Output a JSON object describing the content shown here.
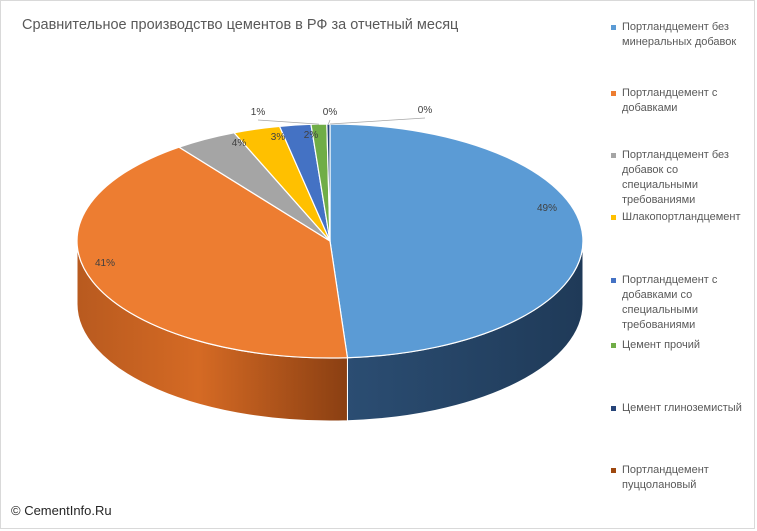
{
  "chart_data": {
    "type": "pie",
    "title": "Сравнительное производство цементов в РФ за отчетный месяц",
    "categories": [
      "Портландцемент без минеральных добавок",
      "Портландцемент с добавками",
      "Портландцемент без добавок со специальными требованиями",
      "Шлакопортландцемент",
      "Портландцемент с добавками со специальными требованиями",
      "Цемент прочий",
      "Цемент глиноземистый",
      "Портландцемент пуццолановый"
    ],
    "values": [
      49,
      41,
      4,
      3,
      2,
      1,
      0,
      0
    ],
    "data_labels": [
      "49%",
      "41%",
      "4%",
      "3%",
      "2%",
      "1%",
      "0%",
      "0%"
    ],
    "colors": [
      "#5b9bd5",
      "#ed7d31",
      "#a5a5a5",
      "#ffc000",
      "#4472c4",
      "#70ad47",
      "#264478",
      "#9e480e"
    ],
    "legend_position": "right",
    "three_d": true
  },
  "copyright": "© CementInfo.Ru"
}
